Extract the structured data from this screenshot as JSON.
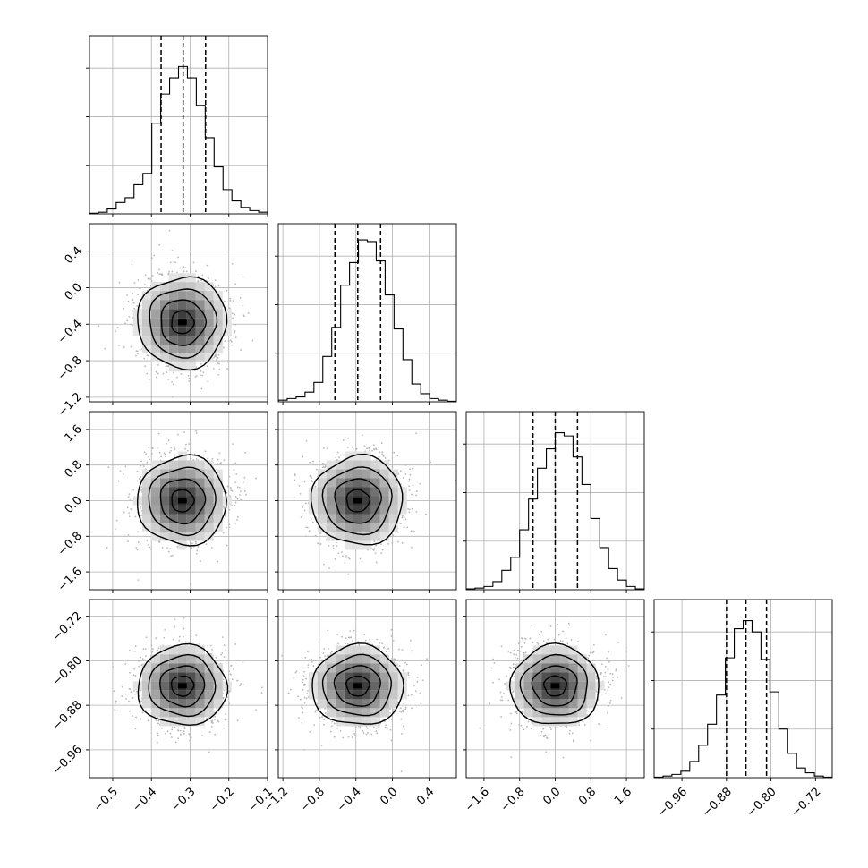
{
  "chart_data": {
    "type": "corner",
    "parameters": [
      {
        "range": [
          -0.56,
          -0.1
        ],
        "ticks": [
          -0.5,
          -0.4,
          -0.3,
          -0.2,
          -0.1
        ],
        "tick_labels": [
          "−0.5",
          "−0.4",
          "−0.3",
          "−0.2",
          "−0.1"
        ],
        "quantiles": [
          -0.375,
          -0.318,
          -0.26
        ],
        "histogram": [
          0.004,
          0.01,
          0.03,
          0.07,
          0.1,
          0.18,
          0.25,
          0.56,
          0.74,
          0.84,
          0.91,
          0.84,
          0.67,
          0.47,
          0.29,
          0.15,
          0.08,
          0.04,
          0.02,
          0.01
        ]
      },
      {
        "range": [
          -1.25,
          0.7
        ],
        "ticks": [
          -1.2,
          -0.8,
          -0.4,
          0.0,
          0.4
        ],
        "tick_labels": [
          "−1.2",
          "−0.8",
          "−0.4",
          "0.0",
          "0.4"
        ],
        "quantiles": [
          -0.63,
          -0.38,
          -0.13
        ],
        "histogram": [
          0.01,
          0.02,
          0.03,
          0.06,
          0.12,
          0.28,
          0.46,
          0.72,
          0.86,
          1.0,
          0.99,
          0.87,
          0.66,
          0.45,
          0.26,
          0.11,
          0.05,
          0.02,
          0.01,
          0.003
        ]
      },
      {
        "range": [
          -2.0,
          2.0
        ],
        "ticks": [
          -1.6,
          -0.8,
          0.0,
          0.8,
          1.6
        ],
        "tick_labels": [
          "−1.6",
          "−0.8",
          "0.0",
          "0.8",
          "1.6"
        ],
        "quantiles": [
          -0.5,
          0.0,
          0.5
        ],
        "histogram": [
          0.005,
          0.01,
          0.02,
          0.05,
          0.12,
          0.2,
          0.37,
          0.56,
          0.75,
          0.87,
          0.97,
          0.95,
          0.82,
          0.65,
          0.44,
          0.26,
          0.13,
          0.06,
          0.02,
          0.005
        ]
      },
      {
        "range": [
          -1.01,
          -0.69
        ],
        "ticks": [
          -0.96,
          -0.88,
          -0.8,
          -0.72
        ],
        "tick_labels": [
          "−0.96",
          "−0.88",
          "−0.80",
          "−0.72"
        ],
        "quantiles": [
          -0.88,
          -0.845,
          -0.808
        ],
        "histogram": [
          0.003,
          0.01,
          0.02,
          0.04,
          0.1,
          0.2,
          0.33,
          0.51,
          0.74,
          0.92,
          0.97,
          0.9,
          0.73,
          0.53,
          0.3,
          0.15,
          0.06,
          0.03,
          0.01,
          0.003
        ]
      }
    ],
    "scatter_panels": [
      {
        "row": 1,
        "col": 0,
        "center": [
          -0.32,
          -0.38
        ]
      },
      {
        "row": 2,
        "col": 0,
        "center": [
          -0.32,
          0.0
        ]
      },
      {
        "row": 2,
        "col": 1,
        "center": [
          -0.38,
          0.0
        ]
      },
      {
        "row": 3,
        "col": 0,
        "center": [
          -0.32,
          -0.845
        ]
      },
      {
        "row": 3,
        "col": 1,
        "center": [
          -0.38,
          -0.845
        ]
      },
      {
        "row": 3,
        "col": 2,
        "center": [
          0.0,
          -0.845
        ]
      }
    ],
    "contour_levels_sigma": [
      0.5,
      1.0,
      1.5,
      2.0
    ],
    "grid": true,
    "legend": "none"
  }
}
